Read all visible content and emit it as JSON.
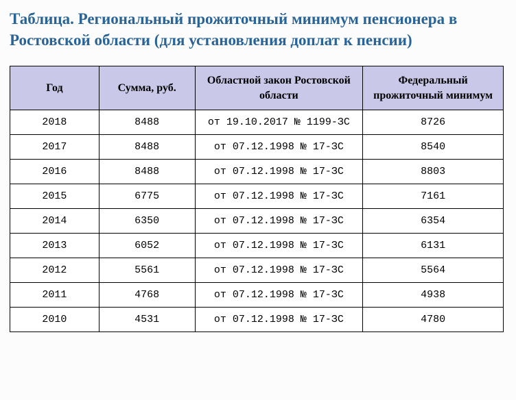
{
  "title": "Таблица. Региональный прожиточный минимум пенсионера в Ростовской области (для установления доплат к пенсии)",
  "table": {
    "columns": [
      {
        "key": "year",
        "label": "Год",
        "class": "col-year"
      },
      {
        "key": "sum",
        "label": "Сумма, руб.",
        "class": "col-sum"
      },
      {
        "key": "law",
        "label": "Областной закон Ростовской области",
        "class": "col-law"
      },
      {
        "key": "fed",
        "label": "Федеральный прожиточный минимум",
        "class": "col-fed"
      }
    ],
    "rows": [
      {
        "year": "2018",
        "sum": "8488",
        "law": "от 19.10.2017 № 1199-ЗС",
        "fed": "8726"
      },
      {
        "year": "2017",
        "sum": "8488",
        "law": "от 07.12.1998 № 17-ЗС",
        "fed": "8540"
      },
      {
        "year": "2016",
        "sum": "8488",
        "law": "от 07.12.1998 № 17-ЗС",
        "fed": "8803"
      },
      {
        "year": "2015",
        "sum": "6775",
        "law": "от 07.12.1998 № 17-ЗС",
        "fed": "7161"
      },
      {
        "year": "2014",
        "sum": "6350",
        "law": "от 07.12.1998 № 17-ЗС",
        "fed": "6354"
      },
      {
        "year": "2013",
        "sum": "6052",
        "law": "от 07.12.1998 № 17-ЗС",
        "fed": "6131"
      },
      {
        "year": "2012",
        "sum": "5561",
        "law": "от 07.12.1998 № 17-ЗС",
        "fed": "5564"
      },
      {
        "year": "2011",
        "sum": "4768",
        "law": "от 07.12.1998 № 17-ЗС",
        "fed": "4938"
      },
      {
        "year": "2010",
        "sum": "4531",
        "law": "от 07.12.1998 № 17-ЗС",
        "fed": "4780"
      }
    ],
    "styling": {
      "header_bg": "#c9c8e8",
      "border_color": "#000000",
      "cell_bg": "#ffffff",
      "title_color": "#2a6496",
      "body_bg": "#fcfcfc",
      "header_font": "Georgia",
      "cell_font": "Courier New",
      "header_fontsize": 16,
      "cell_fontsize": 15,
      "title_fontsize": 23
    }
  }
}
